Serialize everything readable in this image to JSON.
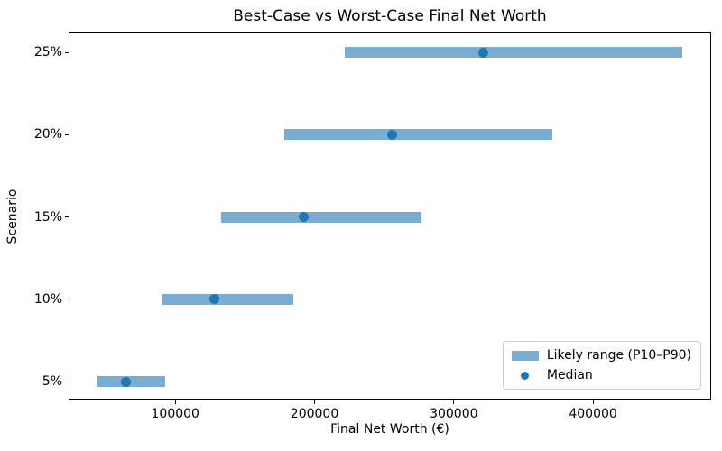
{
  "chart_data": {
    "type": "bar",
    "orientation": "horizontal",
    "title": "Best-Case vs Worst-Case Final Net Worth",
    "xlabel": "Final Net Worth (€)",
    "ylabel": "Scenario",
    "categories": [
      "5%",
      "10%",
      "15%",
      "20%",
      "25%"
    ],
    "series": [
      {
        "name": "Likely range (P10–P90)",
        "type": "range-bar",
        "p10": [
          44000,
          90000,
          133000,
          178000,
          222000
        ],
        "p90": [
          93000,
          185000,
          277000,
          371000,
          464000
        ]
      },
      {
        "name": "Median",
        "type": "point",
        "values": [
          64500,
          128000,
          192000,
          256000,
          321000
        ]
      }
    ],
    "xlim": [
      24000,
      485500
    ],
    "x_ticks": [
      100000,
      200000,
      300000,
      400000
    ],
    "x_tick_labels": [
      "100000",
      "200000",
      "300000",
      "400000"
    ],
    "grid": false,
    "legend": {
      "position": "lower right",
      "items": [
        {
          "label": "Likely range (P10–P90)",
          "marker": "patch",
          "color": "#79add2"
        },
        {
          "label": "Median",
          "marker": "dot",
          "color": "#1f77b4"
        }
      ]
    },
    "colors": {
      "bar": "#79add2",
      "median_dot": "#1f77b4",
      "axis": "#000000",
      "legend_border": "#cccccc",
      "background": "#ffffff",
      "text": "#000000"
    }
  }
}
